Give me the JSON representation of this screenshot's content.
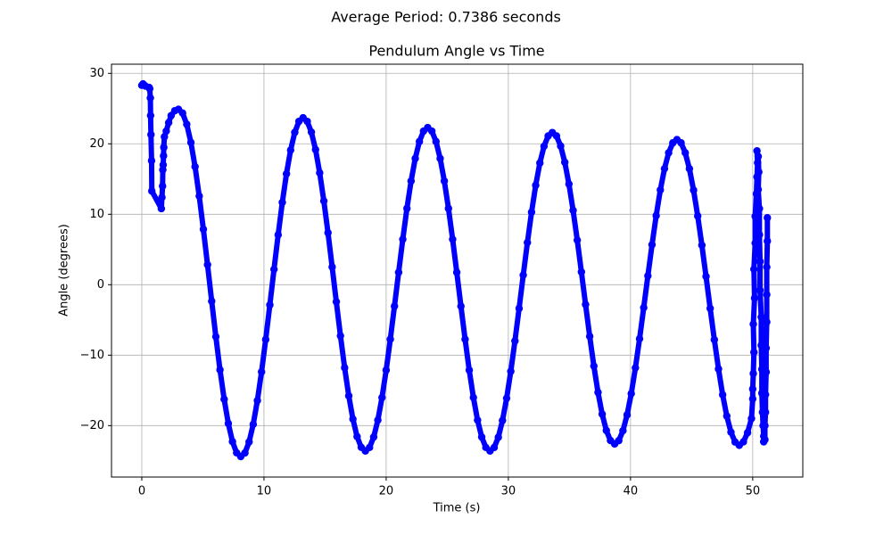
{
  "chart_data": {
    "type": "line",
    "suptitle": "Average Period: 0.7386 seconds",
    "title": "Pendulum Angle vs Time",
    "xlabel": "Time (s)",
    "ylabel": "Angle (degrees)",
    "color": "#0000ff",
    "grid": true,
    "xlim": [
      -2.48,
      54.1
    ],
    "ylim": [
      -27.3,
      31.3
    ],
    "xticks": [
      0,
      10,
      20,
      30,
      40,
      50
    ],
    "yticks": [
      {
        "value": -20,
        "label": "−20"
      },
      {
        "value": -10,
        "label": "−10"
      },
      0,
      10,
      20,
      30
    ],
    "x": [
      0,
      0.1,
      0.3,
      0.6,
      0.65,
      0.7,
      0.72,
      0.75,
      0.8,
      0.82,
      1.6,
      1.65,
      1.7,
      1.72,
      1.75,
      1.78,
      1.8,
      1.85,
      2,
      2.2,
      2.4,
      2.7,
      3,
      3.34,
      3.68,
      4.02,
      4.36,
      4.7,
      5.04,
      5.38,
      5.72,
      6.06,
      6.4,
      6.74,
      7.08,
      7.42,
      7.76,
      8.1,
      8.44,
      8.78,
      9.12,
      9.46,
      9.8,
      10.14,
      10.48,
      10.82,
      11.16,
      11.5,
      11.84,
      12.18,
      12.52,
      12.86,
      13.2,
      13.54,
      13.88,
      14.22,
      14.56,
      14.9,
      15.24,
      15.58,
      15.92,
      16.26,
      16.6,
      16.94,
      17.28,
      17.62,
      17.96,
      18.3,
      18.64,
      18.98,
      19.32,
      19.66,
      20,
      20.34,
      20.68,
      21.02,
      21.36,
      21.7,
      22.04,
      22.38,
      22.72,
      23.06,
      23.4,
      23.74,
      24.08,
      24.42,
      24.76,
      25.1,
      25.44,
      25.78,
      26.12,
      26.46,
      26.8,
      27.14,
      27.48,
      27.82,
      28.16,
      28.5,
      28.84,
      29.18,
      29.52,
      29.86,
      30.2,
      30.54,
      30.88,
      31.22,
      31.56,
      31.9,
      32.24,
      32.58,
      32.92,
      33.26,
      33.6,
      33.94,
      34.28,
      34.62,
      34.96,
      35.3,
      35.64,
      35.98,
      36.32,
      36.66,
      37,
      37.34,
      37.68,
      38.02,
      38.36,
      38.7,
      39.04,
      39.38,
      39.72,
      40.06,
      40.4,
      40.74,
      41.08,
      41.42,
      41.76,
      42.1,
      42.44,
      42.78,
      43.12,
      43.46,
      43.8,
      44.14,
      44.48,
      44.82,
      45.16,
      45.5,
      45.84,
      46.18,
      46.52,
      46.86,
      47.2,
      47.54,
      47.88,
      48.22,
      48.56,
      48.9,
      49.24,
      49.58,
      49.9,
      50,
      50,
      50.05,
      50.1,
      50.05,
      50.15,
      50.1,
      50.2,
      50.2,
      50.3,
      50.35,
      50.4,
      50.35,
      50.45,
      50.5,
      50.45,
      50.55,
      50.55,
      50.6,
      50.6,
      50.7,
      50.7,
      50.75,
      50.75,
      50.8,
      50.85,
      50.9,
      50.9,
      51,
      51,
      51.05,
      51.05,
      51.1,
      51.1,
      51.15,
      51.15,
      51.15,
      51.2,
      51.2
    ],
    "values": [
      28.3,
      28.5,
      28.2,
      28,
      27.8,
      26.5,
      24,
      21.3,
      17.6,
      13.3,
      10.8,
      12.4,
      14,
      16.3,
      17,
      18.3,
      19.5,
      21,
      21.8,
      23,
      24,
      24.7,
      24.9,
      24.36,
      22.77,
      20.19,
      16.75,
      12.58,
      7.87,
      2.83,
      -2.33,
      -7.37,
      -12.08,
      -16.25,
      -19.69,
      -22.27,
      -23.86,
      -24.4,
      -23.88,
      -22.32,
      -19.81,
      -16.44,
      -12.38,
      -7.78,
      -2.87,
      2.17,
      7.08,
      11.68,
      15.74,
      19.11,
      21.62,
      23.18,
      23.7,
      23.18,
      21.66,
      19.18,
      15.88,
      11.88,
      7.36,
      2.52,
      -2.42,
      -7.26,
      -11.78,
      -15.78,
      -19.08,
      -21.56,
      -23.08,
      -23.6,
      -23.1,
      -21.62,
      -19.22,
      -16.01,
      -12.13,
      -7.74,
      -3.05,
      1.75,
      6.44,
      10.83,
      14.71,
      17.92,
      20.32,
      21.8,
      22.3,
      21.8,
      20.32,
      17.92,
      14.71,
      10.83,
      6.44,
      1.75,
      -3.05,
      -7.74,
      -12.13,
      -16.01,
      -19.22,
      -21.62,
      -23.1,
      -23.6,
      -23.11,
      -21.65,
      -19.28,
      -16.12,
      -12.3,
      -7.98,
      -3.36,
      1.36,
      5.98,
      10.3,
      14.12,
      17.28,
      19.65,
      21.11,
      21.6,
      21.12,
      19.69,
      17.38,
      14.29,
      10.55,
      6.33,
      1.81,
      -2.81,
      -7.33,
      -11.55,
      -15.29,
      -18.38,
      -20.69,
      -22.12,
      -22.6,
      -22.13,
      -20.73,
      -18.47,
      -15.45,
      -11.8,
      -7.67,
      -3.26,
      1.26,
      5.67,
      9.8,
      13.45,
      16.47,
      18.73,
      20.13,
      20.6,
      20.13,
      18.73,
      16.46,
      13.42,
      9.75,
      5.61,
      1.17,
      -3.37,
      -7.81,
      -11.95,
      -15.62,
      -18.65,
      -20.93,
      -22.33,
      -22.8,
      -22.3,
      -21,
      -19,
      -16.2,
      -14.8,
      -12.6,
      -9.6,
      -5.6,
      -1.9,
      2.2,
      5.9,
      9.7,
      12.9,
      15.3,
      17.3,
      19,
      18.2,
      16,
      13.5,
      10.8,
      7.1,
      3.3,
      -0.8,
      -4.6,
      -8.6,
      -12,
      -15.4,
      -18.1,
      -20,
      -21.5,
      -22.3,
      -22,
      -20,
      -18.1,
      -15.6,
      -12.4,
      -9,
      -5.3,
      -1.4,
      2.5,
      6.2,
      9.5
    ]
  }
}
